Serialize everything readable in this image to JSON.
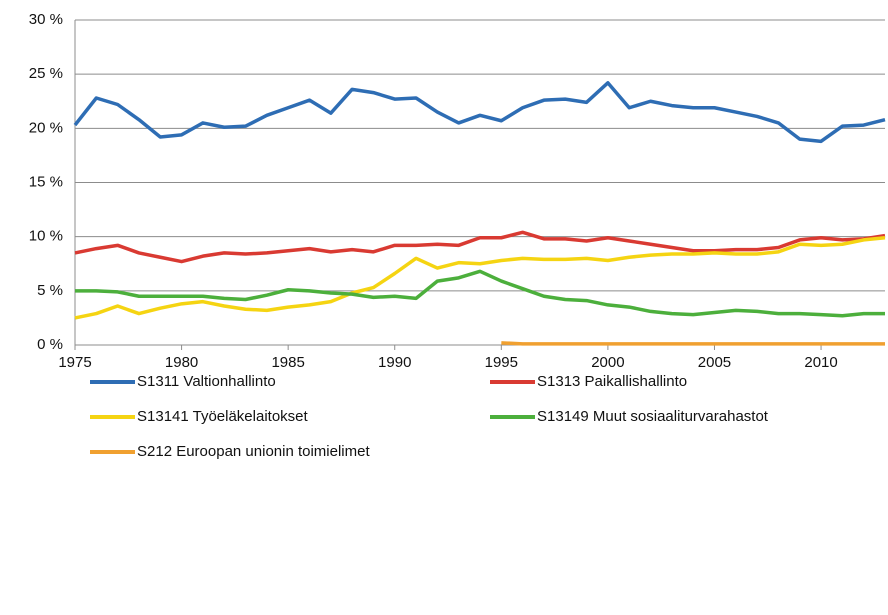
{
  "chart_data": {
    "type": "line",
    "x": [
      1975,
      1976,
      1977,
      1978,
      1979,
      1980,
      1981,
      1982,
      1983,
      1984,
      1985,
      1986,
      1987,
      1988,
      1989,
      1990,
      1991,
      1992,
      1993,
      1994,
      1995,
      1996,
      1997,
      1998,
      1999,
      2000,
      2001,
      2002,
      2003,
      2004,
      2005,
      2006,
      2007,
      2008,
      2009,
      2010,
      2011,
      2012,
      2013
    ],
    "xlim": [
      1975,
      2013
    ],
    "xticks": [
      1975,
      1980,
      1985,
      1990,
      1995,
      2000,
      2005,
      2010
    ],
    "ylim": [
      0,
      30
    ],
    "yticks": [
      {
        "value": 0,
        "label": "0 %"
      },
      {
        "value": 5,
        "label": "5 %"
      },
      {
        "value": 10,
        "label": "10 %"
      },
      {
        "value": 15,
        "label": "15 %"
      },
      {
        "value": 20,
        "label": "20 %"
      },
      {
        "value": 25,
        "label": "25 %"
      },
      {
        "value": 30,
        "label": "30 %"
      }
    ],
    "grid": true,
    "series": [
      {
        "name": "S1311 Valtionhallinto",
        "color": "#2e6db4",
        "values": [
          20.3,
          22.8,
          22.2,
          20.8,
          19.2,
          19.4,
          20.5,
          20.1,
          20.2,
          21.2,
          21.9,
          22.6,
          21.4,
          23.6,
          23.3,
          22.7,
          22.8,
          21.5,
          20.5,
          21.2,
          20.7,
          21.9,
          22.6,
          22.7,
          22.4,
          24.2,
          21.9,
          22.5,
          22.1,
          21.9,
          21.9,
          21.5,
          21.1,
          20.5,
          19.0,
          18.8,
          20.2,
          20.3,
          20.8
        ]
      },
      {
        "name": "S1313 Paikallishallinto",
        "color": "#d93a32",
        "values": [
          8.5,
          8.9,
          9.2,
          8.5,
          8.1,
          7.7,
          8.2,
          8.5,
          8.4,
          8.5,
          8.7,
          8.9,
          8.6,
          8.8,
          8.6,
          9.2,
          9.2,
          9.3,
          9.2,
          9.9,
          9.9,
          10.4,
          9.8,
          9.8,
          9.6,
          9.9,
          9.6,
          9.3,
          9.0,
          8.7,
          8.7,
          8.8,
          8.8,
          9.0,
          9.7,
          9.9,
          9.7,
          9.8,
          10.1
        ]
      },
      {
        "name": "S13141 Työeläkelaitokset",
        "color": "#f5d412",
        "values": [
          2.5,
          2.9,
          3.6,
          2.9,
          3.4,
          3.8,
          4.0,
          3.6,
          3.3,
          3.2,
          3.5,
          3.7,
          4.0,
          4.8,
          5.3,
          6.6,
          8.0,
          7.1,
          7.6,
          7.5,
          7.8,
          8.0,
          7.9,
          7.9,
          8.0,
          7.8,
          8.1,
          8.3,
          8.4,
          8.4,
          8.5,
          8.4,
          8.4,
          8.6,
          9.3,
          9.2,
          9.3,
          9.7,
          9.9
        ]
      },
      {
        "name": "S13149 Muut sosiaaliturvarahastot",
        "color": "#4caf3c",
        "values": [
          5.0,
          5.0,
          4.9,
          4.5,
          4.5,
          4.5,
          4.5,
          4.3,
          4.2,
          4.6,
          5.1,
          5.0,
          4.8,
          4.7,
          4.4,
          4.5,
          4.3,
          5.9,
          6.2,
          6.8,
          5.9,
          5.2,
          4.5,
          4.2,
          4.1,
          3.7,
          3.5,
          3.1,
          2.9,
          2.8,
          3.0,
          3.2,
          3.1,
          2.9,
          2.9,
          2.8,
          2.7,
          2.9,
          2.9
        ]
      },
      {
        "name": "S212 Euroopan unionin toimielimet",
        "color": "#f0a030",
        "values": [
          null,
          null,
          null,
          null,
          null,
          null,
          null,
          null,
          null,
          null,
          null,
          null,
          null,
          null,
          null,
          null,
          null,
          null,
          null,
          null,
          0.2,
          0.1,
          0.1,
          0.1,
          0.1,
          0.1,
          0.1,
          0.1,
          0.1,
          0.1,
          0.1,
          0.1,
          0.1,
          0.1,
          0.1,
          0.1,
          0.1,
          0.1,
          0.1
        ]
      }
    ]
  }
}
